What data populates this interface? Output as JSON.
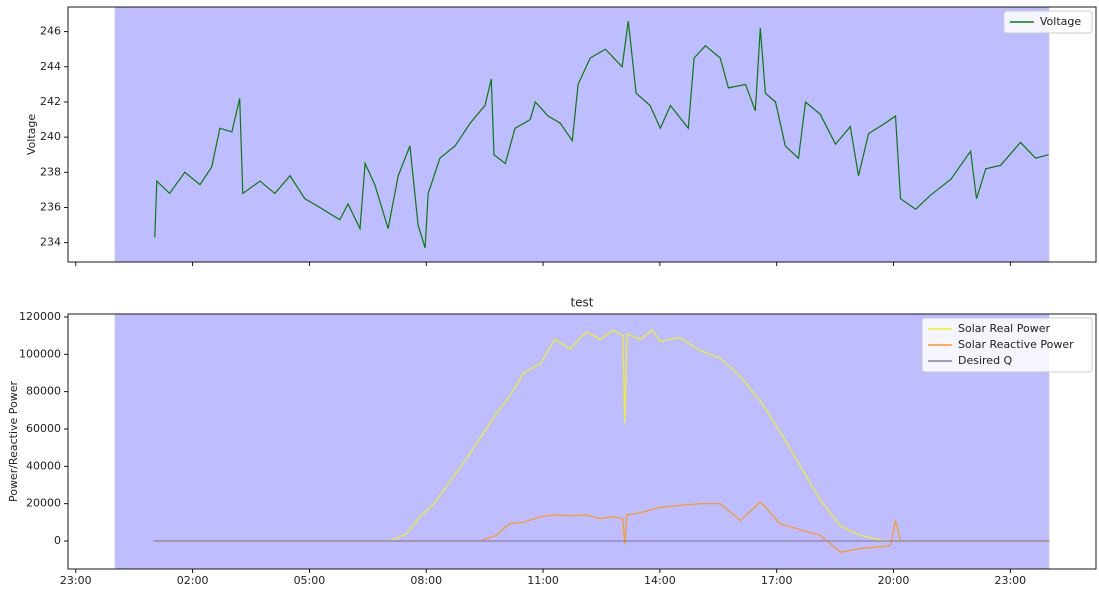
{
  "chart_data": [
    {
      "type": "line",
      "ylabel": "Voltage",
      "xlim": [
        -1.2,
        25.2
      ],
      "ylim": [
        232.9,
        247.4
      ],
      "xticks": [
        -1,
        2,
        5,
        8,
        11,
        14,
        17,
        20,
        23
      ],
      "yticks": [
        234,
        236,
        238,
        240,
        242,
        244,
        246
      ],
      "span": [
        0,
        24
      ],
      "span_color": "#bdbdff",
      "legend": "upper right",
      "x": [
        1.03,
        1.08,
        1.41,
        1.8,
        2.19,
        2.49,
        2.7,
        3.01,
        3.21,
        3.29,
        3.73,
        4.11,
        4.5,
        4.88,
        5.27,
        5.78,
        5.99,
        6.3,
        6.43,
        6.68,
        7.02,
        7.28,
        7.58,
        7.79,
        7.97,
        8.05,
        8.35,
        8.74,
        9.13,
        9.51,
        9.67,
        9.74,
        10.03,
        10.28,
        10.67,
        10.8,
        11.13,
        11.44,
        11.75,
        11.9,
        12.21,
        12.6,
        13.03,
        13.19,
        13.39,
        13.75,
        14.01,
        14.27,
        14.73,
        14.88,
        15.17,
        15.55,
        15.76,
        16.2,
        16.45,
        16.58,
        16.71,
        16.97,
        17.22,
        17.56,
        17.74,
        18.12,
        18.51,
        18.89,
        19.1,
        19.36,
        19.79,
        20.05,
        20.18,
        20.57,
        20.95,
        21.47,
        21.98,
        22.13,
        22.37,
        22.75,
        23.26,
        23.65,
        23.98
      ],
      "series": [
        {
          "name": "Voltage",
          "color": "#0a7a0a",
          "values": [
            234.3,
            237.5,
            236.8,
            238.0,
            237.3,
            238.3,
            240.5,
            240.3,
            242.2,
            236.8,
            237.5,
            236.8,
            237.8,
            236.5,
            236.0,
            235.3,
            236.2,
            234.8,
            238.5,
            237.3,
            234.8,
            237.8,
            239.5,
            235.0,
            233.7,
            236.8,
            238.8,
            239.5,
            240.8,
            241.8,
            243.3,
            239.0,
            238.5,
            240.5,
            241.0,
            242.0,
            241.2,
            240.8,
            239.8,
            243.0,
            244.5,
            245.0,
            244.0,
            246.6,
            242.5,
            241.8,
            240.5,
            241.8,
            240.5,
            244.5,
            245.2,
            244.5,
            242.8,
            243.0,
            241.5,
            246.2,
            242.5,
            242.0,
            239.5,
            238.8,
            242.0,
            241.3,
            239.6,
            240.6,
            237.8,
            240.2,
            240.8,
            241.2,
            236.5,
            235.9,
            236.7,
            237.6,
            239.2,
            236.5,
            238.2,
            238.4,
            239.7,
            238.8,
            239.0
          ]
        }
      ]
    },
    {
      "type": "line",
      "title": "test",
      "ylabel": "Power/Reactive Power",
      "xlim": [
        -1.2,
        25.2
      ],
      "ylim": [
        -15000,
        121600
      ],
      "xticks": [
        {
          "value": -1,
          "label": "23:00"
        },
        {
          "value": 2,
          "label": "02:00"
        },
        {
          "value": 5,
          "label": "05:00"
        },
        {
          "value": 8,
          "label": "08:00"
        },
        {
          "value": 11,
          "label": "11:00"
        },
        {
          "value": 14,
          "label": "14:00"
        },
        {
          "value": 17,
          "label": "17:00"
        },
        {
          "value": 20,
          "label": "20:00"
        },
        {
          "value": 23,
          "label": "23:00"
        }
      ],
      "yticks": [
        0,
        20000,
        40000,
        60000,
        80000,
        100000,
        120000
      ],
      "span": [
        0,
        24
      ],
      "span_color": "#bdbdff",
      "legend": "upper right",
      "x": [
        1.0,
        7.07,
        7.5,
        7.84,
        8.2,
        8.61,
        9.0,
        9.38,
        9.8,
        10.15,
        10.5,
        10.93,
        11.3,
        11.7,
        12.1,
        12.47,
        12.8,
        13.05,
        13.1,
        13.15,
        13.5,
        13.8,
        14.01,
        14.5,
        15.04,
        15.55,
        16.07,
        16.58,
        17.1,
        17.61,
        18.12,
        18.64,
        19.15,
        19.67,
        19.92,
        20.05,
        20.18,
        24.0
      ],
      "series": [
        {
          "name": "Solar Real Power",
          "color": "#f2f21a",
          "values": [
            0,
            0,
            4000,
            13000,
            20000,
            32000,
            43000,
            55000,
            68000,
            78000,
            90000,
            95000,
            108000,
            103000,
            112000,
            108000,
            113000,
            110000,
            63000,
            111000,
            108000,
            113000,
            107000,
            109000,
            102000,
            98000,
            88000,
            75000,
            58000,
            40000,
            22000,
            8000,
            3000,
            500,
            0,
            0,
            0,
            0
          ]
        },
        {
          "name": "Solar Reactive Power",
          "color": "#ff9a1a",
          "values": [
            0,
            0,
            0,
            0,
            0,
            0,
            0,
            0,
            3000,
            9500,
            10000,
            13000,
            14000,
            13500,
            14000,
            12000,
            13000,
            12000,
            -2000,
            14000,
            15000,
            17000,
            18000,
            19000,
            20000,
            20000,
            11000,
            21000,
            9000,
            6000,
            3000,
            -6000,
            -4000,
            -3000,
            -2500,
            11000,
            0,
            0
          ]
        },
        {
          "name": "Desired Q",
          "color": "#8c7fa8",
          "values": [
            0,
            0,
            0,
            0,
            0,
            0,
            0,
            0,
            0,
            0,
            0,
            0,
            0,
            0,
            0,
            0,
            0,
            0,
            0,
            0,
            0,
            0,
            0,
            0,
            0,
            0,
            0,
            0,
            0,
            0,
            0,
            0,
            0,
            0,
            0,
            0,
            0,
            0
          ]
        }
      ]
    }
  ]
}
